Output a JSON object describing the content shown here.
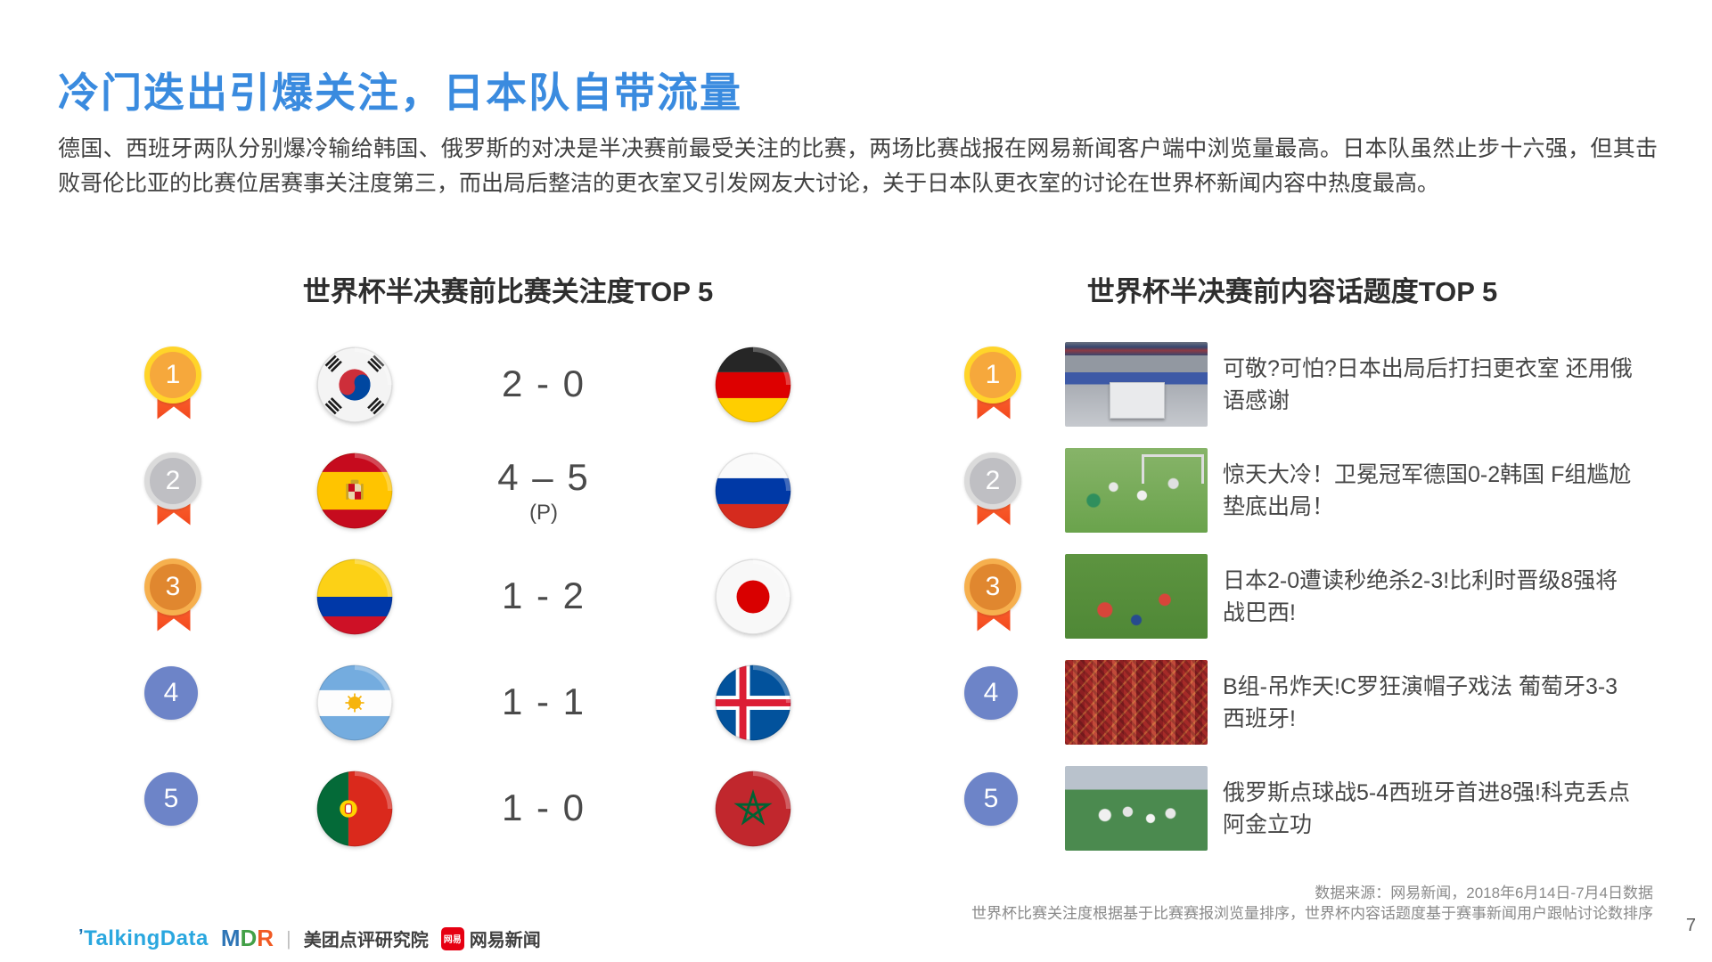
{
  "title": "冷门迭出引爆关注，日本队自带流量",
  "intro": "德国、西班牙两队分别爆冷输给韩国、俄罗斯的对决是半决赛前最受关注的比赛，两场比赛战报在网易新闻客户端中浏览量最高。日本队虽然止步十六强，但其击败哥伦比亚的比赛位居赛事关注度第三，而出局后整洁的更衣室又引发网友大讨论，关于日本队更衣室的讨论在世界杯新闻内容中热度最高。",
  "left_panel": {
    "title": "世界杯半决赛前比赛关注度TOP 5",
    "rows": [
      {
        "rank": "1",
        "team_a": "flag-south-korea",
        "score": "2 - 0",
        "note": "",
        "team_b": "flag-germany"
      },
      {
        "rank": "2",
        "team_a": "flag-spain",
        "score": "4 – 5",
        "note": "(P)",
        "team_b": "flag-russia"
      },
      {
        "rank": "3",
        "team_a": "flag-colombia",
        "score": "1 - 2",
        "note": "",
        "team_b": "flag-japan"
      },
      {
        "rank": "4",
        "team_a": "flag-argentina",
        "score": "1 - 1",
        "note": "",
        "team_b": "flag-iceland"
      },
      {
        "rank": "5",
        "team_a": "flag-portugal",
        "score": "1 - 0",
        "note": "",
        "team_b": "flag-morocco"
      }
    ]
  },
  "right_panel": {
    "title": "世界杯半决赛前内容话题度TOP 5",
    "rows": [
      {
        "rank": "1",
        "photo": "japan-locker-room-photo",
        "headline": "可敬?可怕?日本出局后打扫更衣室 还用俄语感谢"
      },
      {
        "rank": "2",
        "photo": "germany-korea-match-photo",
        "headline": "惊天大冷！卫冕冠军德国0-2韩国 F组尴尬垫底出局！"
      },
      {
        "rank": "3",
        "photo": "japan-belgium-match-photo",
        "headline": "日本2-0遭读秒绝杀2-3!比利时晋级8强将战巴西!"
      },
      {
        "rank": "4",
        "photo": "portugal-fans-crowd-photo",
        "headline": "B组-吊炸天!C罗狂演帽子戏法 葡萄牙3-3西班牙!"
      },
      {
        "rank": "5",
        "photo": "russia-celebration-photo",
        "headline": "俄罗斯点球战5-4西班牙首进8强!科克丢点阿金立功"
      }
    ]
  },
  "footer": {
    "source_line1": "数据来源：网易新闻，2018年6月14日-7月4日数据",
    "source_line2": "世界杯比赛关注度根据基于比赛赛报浏览量排序，世界杯内容话题度基于赛事新闻用户跟帖讨论数排序",
    "page_number": "7",
    "logos": {
      "talkingdata": "TalkingData",
      "mdr": "MDR",
      "meituan": "美团点评研究院",
      "netease_badge": "网易",
      "netease": "网易新闻"
    }
  },
  "colors": {
    "accent_blue": "#3A8BDF",
    "text_dark": "#404040",
    "heading_dark": "#2E2E2E",
    "medal_gold_ring": "#FFD42A",
    "medal_gold_fill": "#F6A83C",
    "medal_silver_ring": "#DBDBDB",
    "medal_silver_fill": "#BFBFC3",
    "medal_bronze_ring": "#F6B04E",
    "medal_bronze_fill": "#E0872F",
    "rank_blue": "#6D84C8",
    "ribbon_orange": "#F2471D",
    "footer_gray": "#8A8A8A"
  }
}
